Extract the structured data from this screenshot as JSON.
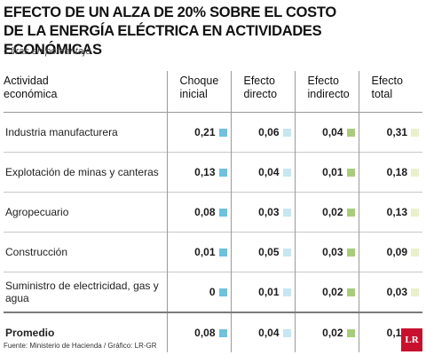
{
  "title_line1": "Efecto de un alza de 20% sobre el costo",
  "title_line2": "de la energía eléctrica en  actividades económicas",
  "subtitle": "Cifras en porcentaje",
  "columns": {
    "activity": [
      "Actividad",
      "económica"
    ],
    "shock": [
      "Choque",
      "inicial"
    ],
    "direct": [
      "Efecto",
      "directo"
    ],
    "indirect": [
      "Efecto",
      "indirecto"
    ],
    "total": [
      "Efecto",
      "total"
    ]
  },
  "swatch_colors": {
    "shock": "#6fc1dd",
    "direct": "#c7e6f1",
    "indirect": "#a8cc7c",
    "total": "#e9f0cc"
  },
  "rows": [
    {
      "label": "Industria manufacturera",
      "shock": "0,21",
      "direct": "0,06",
      "indirect": "0,04",
      "total": "0,31"
    },
    {
      "label": "Explotación de minas y canteras",
      "shock": "0,13",
      "direct": "0,04",
      "indirect": "0,01",
      "total": "0,18"
    },
    {
      "label": "Agropecuario",
      "shock": "0,08",
      "direct": "0,03",
      "indirect": "0,02",
      "total": "0,13"
    },
    {
      "label": "Construcción",
      "shock": "0,01",
      "direct": "0,05",
      "indirect": "0,03",
      "total": "0,09"
    },
    {
      "label": "Suministro de electricidad, gas y agua",
      "shock": "0",
      "direct": "0,01",
      "indirect": "0,02",
      "total": "0,03"
    },
    {
      "label": "Promedio",
      "shock": "0,08",
      "direct": "0,04",
      "indirect": "0,02",
      "total": "0,13"
    }
  ],
  "footer": "Fuente: Ministerio de Hacienda / Gráfico: LR-GR",
  "logo": "LR"
}
